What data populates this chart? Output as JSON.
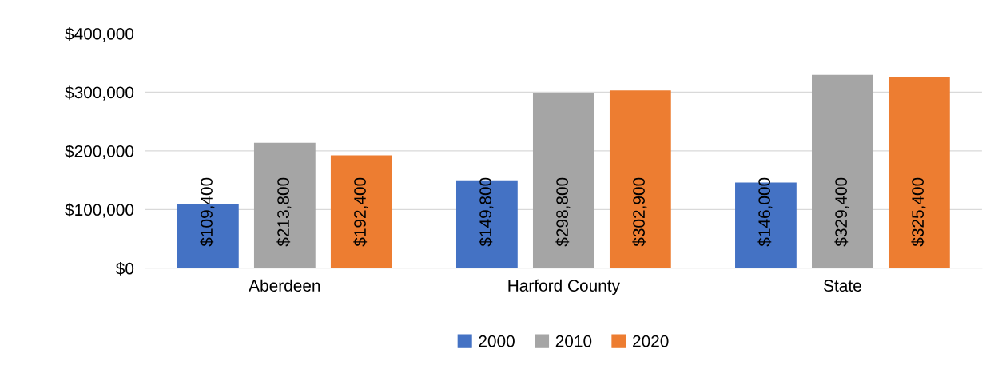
{
  "chart_data": {
    "type": "bar",
    "categories": [
      "Aberdeen",
      "Harford County",
      "State"
    ],
    "series": [
      {
        "name": "2000",
        "color": "#4472c4",
        "values": [
          109400,
          149800,
          146000
        ],
        "value_labels": [
          "$109,400",
          "$149,800",
          "$146,000"
        ]
      },
      {
        "name": "2010",
        "color": "#a5a5a5",
        "values": [
          213800,
          298800,
          329400
        ],
        "value_labels": [
          "$213,800",
          "$298,800",
          "$329,400"
        ]
      },
      {
        "name": "2020",
        "color": "#ed7d31",
        "values": [
          192400,
          302900,
          325400
        ],
        "value_labels": [
          "$192,400",
          "$302,900",
          "$325,400"
        ]
      }
    ],
    "ylim": [
      0,
      400000
    ],
    "yticks": [
      {
        "value": 0,
        "label": "$0"
      },
      {
        "value": 100000,
        "label": "$100,000"
      },
      {
        "value": 200000,
        "label": "$200,000"
      },
      {
        "value": 300000,
        "label": "$300,000"
      },
      {
        "value": 400000,
        "label": "$400,000"
      }
    ],
    "grid": "y",
    "legend": "bottom"
  }
}
